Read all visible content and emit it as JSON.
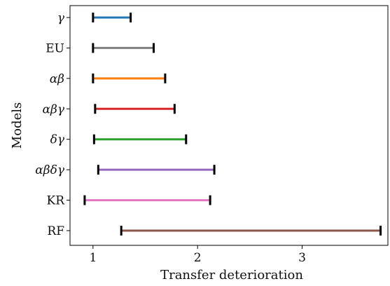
{
  "chart_data": {
    "type": "range",
    "xlabel": "Transfer deterioration",
    "ylabel": "Models",
    "xlim": [
      0.78,
      3.82
    ],
    "xticks": [
      1,
      2,
      3
    ],
    "xtick_labels": [
      "1",
      "2",
      "3"
    ],
    "grid": false,
    "legend": "none",
    "series": [
      {
        "label": "γ",
        "italic": true,
        "min": 1.0,
        "max": 1.36,
        "color": "#1f77b4"
      },
      {
        "label": "EU",
        "italic": false,
        "min": 1.0,
        "max": 1.58,
        "color": "#7f7f7f"
      },
      {
        "label": "αβ",
        "italic": true,
        "min": 1.0,
        "max": 1.69,
        "color": "#ff7f0e"
      },
      {
        "label": "αβγ",
        "italic": true,
        "min": 1.02,
        "max": 1.78,
        "color": "#d62728"
      },
      {
        "label": "δγ",
        "italic": true,
        "min": 1.01,
        "max": 1.89,
        "color": "#2ca02c"
      },
      {
        "label": "αβδγ",
        "italic": true,
        "min": 1.05,
        "max": 2.16,
        "color": "#9467bd"
      },
      {
        "label": "KR",
        "italic": false,
        "min": 0.92,
        "max": 2.12,
        "color": "#e377c2"
      },
      {
        "label": "RF",
        "italic": false,
        "min": 1.27,
        "max": 3.75,
        "color": "#8c564b"
      }
    ]
  }
}
